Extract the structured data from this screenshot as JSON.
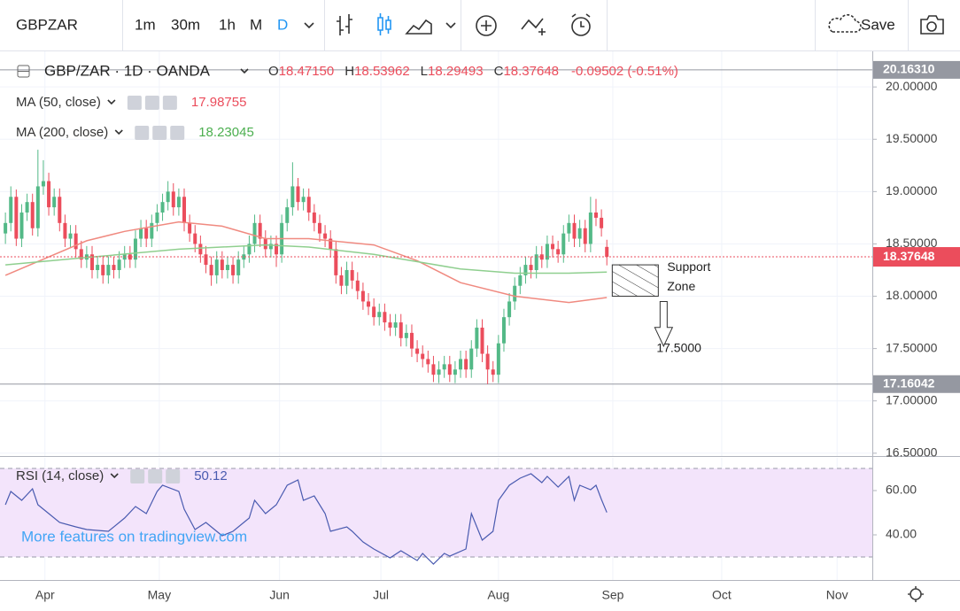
{
  "toolbar": {
    "symbol": "GBPZAR",
    "intervals": [
      "1m",
      "30m",
      "1h",
      "M",
      "D"
    ],
    "save": "Save"
  },
  "watermark": "More features on tradingview.com",
  "chart_data": [
    {
      "type": "candlestick",
      "title": "GBP/ZAR · 1D · OANDA",
      "ohlc_prefixes": [
        "O",
        "H",
        "L",
        "C"
      ],
      "ohlc_labels": [
        "18.47150",
        "18.53962",
        "18.29493",
        "18.37648"
      ],
      "change": "-0.09502 (-0.51%)",
      "up_color": "#53b987",
      "down_color": "#eb4d5c",
      "open": [
        18.6,
        18.7,
        18.95,
        18.55,
        18.8,
        18.9,
        18.65,
        19.05,
        19.1,
        18.85,
        18.95,
        18.7,
        18.55,
        18.6,
        18.45,
        18.35,
        18.4,
        18.25,
        18.3,
        18.2,
        18.3,
        18.25,
        18.35,
        18.4,
        18.35,
        18.55,
        18.65,
        18.55,
        18.7,
        18.8,
        18.9,
        19.0,
        18.85,
        18.95,
        18.7,
        18.6,
        18.5,
        18.4,
        18.3,
        18.2,
        18.35,
        18.25,
        18.3,
        18.2,
        18.35,
        18.4,
        18.5,
        18.7,
        18.55,
        18.45,
        18.5,
        18.4,
        18.7,
        18.85,
        19.05,
        18.9,
        18.95,
        18.8,
        18.7,
        18.6,
        18.55,
        18.45,
        18.2,
        18.1,
        18.25,
        18.15,
        18.05,
        17.95,
        17.9,
        17.8,
        17.85,
        17.75,
        17.7,
        17.75,
        17.6,
        17.65,
        17.5,
        17.45,
        17.4,
        17.35,
        17.25,
        17.3,
        17.35,
        17.25,
        17.3,
        17.4,
        17.3,
        17.5,
        17.7,
        17.45,
        17.3,
        17.25,
        17.55,
        17.8,
        17.95,
        18.1,
        18.2,
        18.3,
        18.25,
        18.4,
        18.35,
        18.5,
        18.45,
        18.4,
        18.6,
        18.7,
        18.55,
        18.65,
        18.5,
        18.8,
        18.75,
        18.4715
      ],
      "high": [
        18.8,
        19.05,
        19.02,
        18.88,
        18.98,
        18.98,
        19.4,
        19.3,
        19.18,
        19.03,
        19.03,
        18.78,
        18.68,
        18.68,
        18.53,
        18.48,
        18.48,
        18.38,
        18.38,
        18.38,
        18.38,
        18.43,
        18.48,
        18.48,
        18.63,
        18.73,
        18.73,
        18.78,
        18.88,
        18.98,
        19.1,
        19.08,
        19.03,
        19.03,
        18.78,
        18.68,
        18.58,
        18.48,
        18.38,
        18.43,
        18.43,
        18.38,
        18.38,
        18.43,
        18.48,
        18.58,
        18.78,
        18.78,
        18.63,
        18.58,
        18.58,
        18.78,
        18.93,
        19.28,
        19.13,
        19.03,
        19.03,
        18.88,
        18.78,
        18.68,
        18.63,
        18.53,
        18.28,
        18.33,
        18.33,
        18.23,
        18.13,
        18.03,
        17.98,
        17.93,
        17.93,
        17.83,
        17.83,
        17.83,
        17.73,
        17.73,
        17.58,
        17.53,
        17.48,
        17.43,
        17.38,
        17.43,
        17.43,
        17.38,
        17.48,
        17.48,
        17.58,
        17.78,
        17.78,
        17.53,
        17.38,
        17.63,
        17.88,
        18.03,
        18.18,
        18.28,
        18.38,
        18.38,
        18.48,
        18.48,
        18.58,
        18.58,
        18.53,
        18.68,
        18.78,
        18.78,
        18.73,
        18.73,
        18.95,
        18.93,
        18.83,
        18.53962
      ],
      "low": [
        18.5,
        18.62,
        18.48,
        18.47,
        18.72,
        18.58,
        18.57,
        18.97,
        18.77,
        18.77,
        18.62,
        18.47,
        18.47,
        18.37,
        18.27,
        18.27,
        18.17,
        18.17,
        18.12,
        18.12,
        18.17,
        18.17,
        18.27,
        18.27,
        18.27,
        18.47,
        18.47,
        18.47,
        18.62,
        18.72,
        18.82,
        18.77,
        18.77,
        18.62,
        18.52,
        18.42,
        18.32,
        18.22,
        18.1,
        18.12,
        18.17,
        18.17,
        18.12,
        18.12,
        18.27,
        18.32,
        18.42,
        18.47,
        18.37,
        18.37,
        18.28,
        18.32,
        18.62,
        18.77,
        18.82,
        18.82,
        18.72,
        18.62,
        18.52,
        18.47,
        18.37,
        18.12,
        18.02,
        18.02,
        18.07,
        17.97,
        17.87,
        17.82,
        17.72,
        17.72,
        17.67,
        17.62,
        17.62,
        17.52,
        17.52,
        17.42,
        17.37,
        17.32,
        17.27,
        17.18,
        17.17,
        17.22,
        17.18,
        17.17,
        17.22,
        17.22,
        17.22,
        17.42,
        17.37,
        17.16042,
        17.18,
        17.17,
        17.47,
        17.72,
        17.87,
        18.02,
        18.12,
        18.17,
        18.17,
        18.27,
        18.27,
        18.37,
        18.32,
        18.32,
        18.52,
        18.47,
        18.47,
        18.42,
        18.42,
        18.67,
        18.57,
        18.29493
      ],
      "close": [
        18.7,
        18.95,
        18.55,
        18.8,
        18.9,
        18.65,
        19.05,
        19.1,
        18.85,
        18.95,
        18.7,
        18.55,
        18.6,
        18.45,
        18.35,
        18.4,
        18.25,
        18.3,
        18.2,
        18.3,
        18.25,
        18.35,
        18.4,
        18.35,
        18.55,
        18.65,
        18.55,
        18.7,
        18.8,
        18.9,
        19.0,
        18.85,
        18.95,
        18.7,
        18.6,
        18.5,
        18.4,
        18.3,
        18.2,
        18.35,
        18.25,
        18.3,
        18.2,
        18.35,
        18.4,
        18.5,
        18.7,
        18.55,
        18.45,
        18.5,
        18.4,
        18.7,
        18.85,
        19.05,
        18.9,
        18.95,
        18.8,
        18.7,
        18.6,
        18.55,
        18.45,
        18.2,
        18.1,
        18.25,
        18.15,
        18.05,
        17.95,
        17.9,
        17.8,
        17.85,
        17.75,
        17.7,
        17.75,
        17.6,
        17.65,
        17.5,
        17.45,
        17.4,
        17.35,
        17.25,
        17.3,
        17.35,
        17.25,
        17.3,
        17.4,
        17.3,
        17.5,
        17.7,
        17.45,
        17.3,
        17.25,
        17.55,
        17.8,
        17.95,
        18.1,
        18.2,
        18.3,
        18.25,
        18.4,
        18.35,
        18.5,
        18.45,
        18.4,
        18.6,
        18.7,
        18.55,
        18.65,
        18.5,
        18.8,
        18.75,
        18.65,
        18.37648
      ],
      "xlim": [
        -1,
        160
      ],
      "xticks": [
        {
          "value": 7.3,
          "label": "Apr"
        },
        {
          "value": 28.4,
          "label": "May"
        },
        {
          "value": 50.6,
          "label": "Jun"
        },
        {
          "value": 69.3,
          "label": "Jul"
        },
        {
          "value": 91,
          "label": "Aug"
        },
        {
          "value": 112.1,
          "label": "Sep"
        },
        {
          "value": 132.2,
          "label": "Oct"
        },
        {
          "value": 153.5,
          "label": "Nov"
        }
      ],
      "ylim": [
        16.473,
        20.34
      ],
      "yticks": [
        {
          "value": 20,
          "label": "20.00000"
        },
        {
          "value": 19.5,
          "label": "19.50000"
        },
        {
          "value": 19,
          "label": "19.00000"
        },
        {
          "value": 18.5,
          "label": "18.50000"
        },
        {
          "value": 18,
          "label": "18.00000"
        },
        {
          "value": 17.5,
          "label": "17.50000"
        },
        {
          "value": 17,
          "label": "17.00000"
        },
        {
          "value": 16.5,
          "label": "16.50000"
        }
      ],
      "grid": true,
      "price_lines": [
        {
          "value": 20.1631,
          "label": "20.16310"
        },
        17.16042
      ],
      "series": [
        {
          "name": "MA (50, close)",
          "color": "#f08a80",
          "x": [
            0,
            15,
            22,
            32,
            40,
            48,
            56,
            68,
            76,
            84,
            94,
            104,
            111
          ],
          "values": [
            18.2,
            18.53,
            18.62,
            18.71,
            18.67,
            18.55,
            18.55,
            18.49,
            18.34,
            18.13,
            18.0,
            17.94,
            17.98755
          ]
        },
        {
          "name": "MA (200, close)",
          "color": "#8fcf8f",
          "x": [
            0,
            15,
            32,
            48,
            56,
            68,
            76,
            84,
            94,
            104,
            111
          ],
          "values": [
            18.3,
            18.37,
            18.45,
            18.49,
            18.47,
            18.4,
            18.33,
            18.26,
            18.22,
            18.22,
            18.23045
          ]
        }
      ],
      "support_zone": {
        "label": [
          "Support",
          "Zone"
        ],
        "low": 18.0,
        "high": 18.3
      },
      "target": {
        "label": "17.5000",
        "value": 17.5
      }
    },
    {
      "type": "line",
      "title": "RSI (14, close)",
      "series": [
        {
          "name": "RSI (14, close)",
          "color": "#4a5bb0",
          "x": [
            0,
            1,
            3,
            5,
            6,
            8,
            10,
            13,
            15,
            19,
            22,
            24,
            26,
            28,
            29,
            32,
            33,
            35,
            37,
            40,
            42,
            45,
            46,
            48,
            50,
            52,
            54,
            55,
            57,
            59,
            60,
            63,
            64,
            66,
            68,
            71,
            73,
            76,
            77,
            79,
            81,
            82,
            85,
            86,
            88,
            90,
            91,
            93,
            95,
            97,
            99,
            100,
            102,
            104,
            105,
            106,
            108,
            109,
            110,
            111
          ],
          "values": [
            53.6,
            59.6,
            55.6,
            60.8,
            53.6,
            49.6,
            45.6,
            43.6,
            42.4,
            41.6,
            47.6,
            52.8,
            49.6,
            59.6,
            62.4,
            59.6,
            51.6,
            42.4,
            45.6,
            39.6,
            41.6,
            47.6,
            55.6,
            49.6,
            53.6,
            62.4,
            64.8,
            55.6,
            57.6,
            49.6,
            41.6,
            43.6,
            41.6,
            36.8,
            33.6,
            29.6,
            32.8,
            28.4,
            31.6,
            26.8,
            31.6,
            30.4,
            33.6,
            49.6,
            37.6,
            41.6,
            55.6,
            62.4,
            65.6,
            67.6,
            63.6,
            66.4,
            61.6,
            66.4,
            55.6,
            62.4,
            60.4,
            62.4,
            56,
            50.12
          ]
        }
      ],
      "ylim": [
        19.6,
        74.8
      ],
      "yticks": [
        {
          "value": 60,
          "label": "60.00"
        },
        {
          "value": 40,
          "label": "40.00"
        }
      ],
      "band": [
        30,
        70
      ],
      "band_color": "#f3e4fb"
    }
  ]
}
